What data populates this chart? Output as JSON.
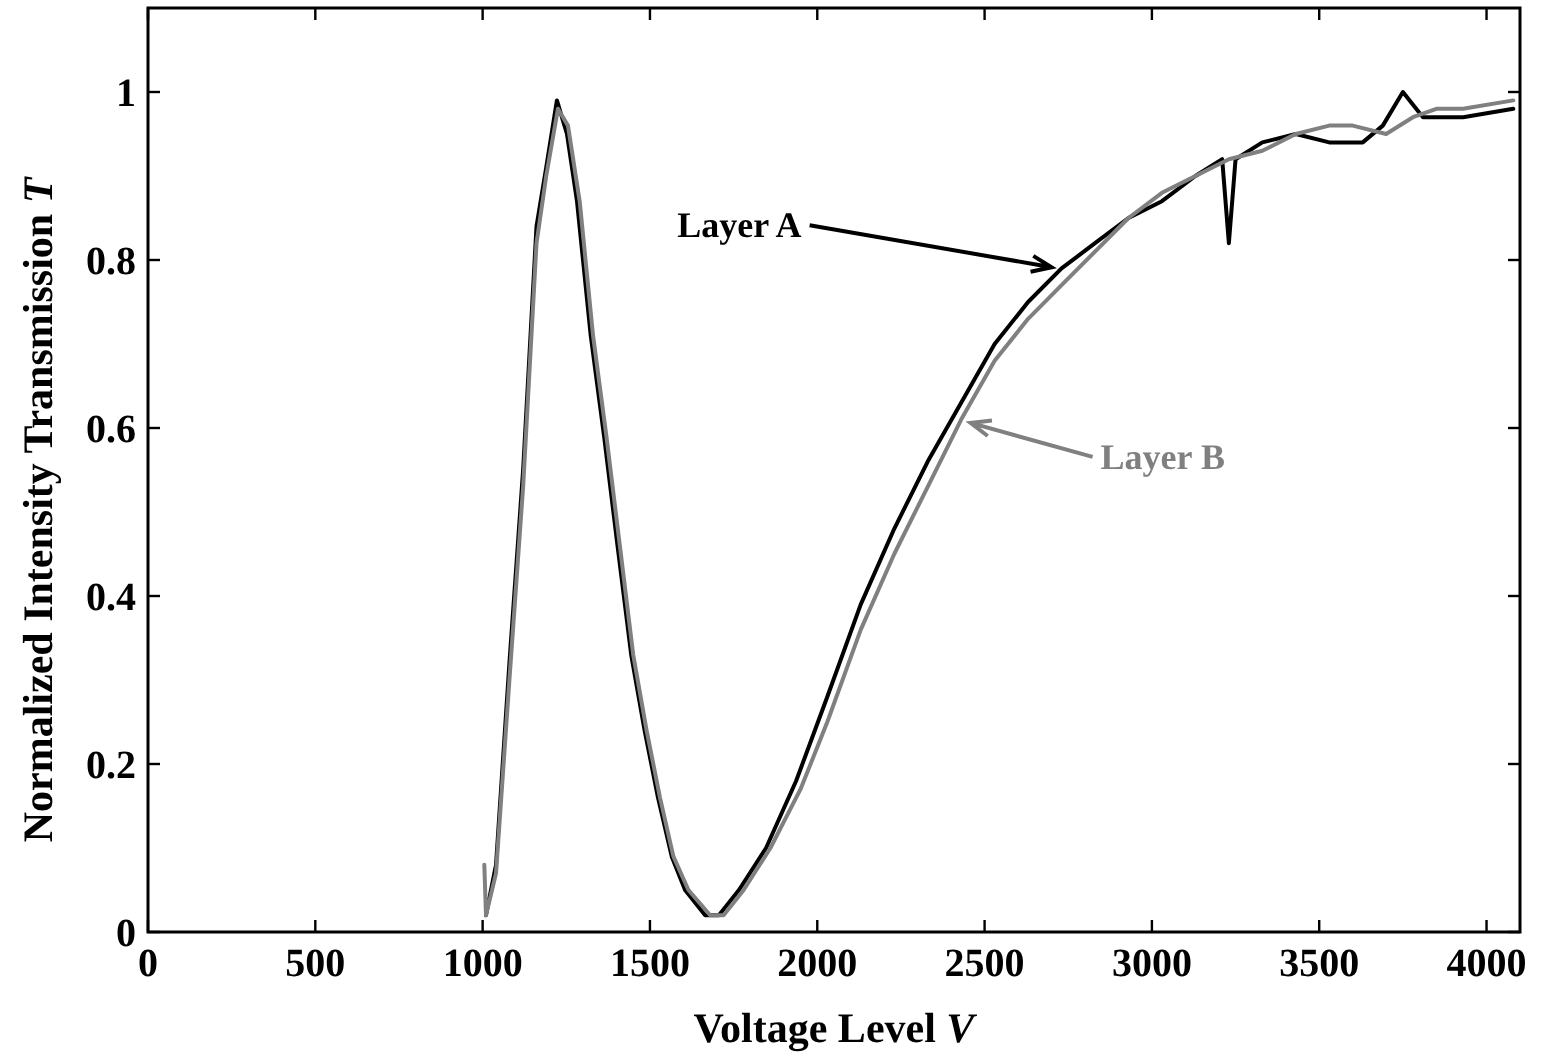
{
  "chart_data": {
    "type": "line",
    "xlabel": "Voltage Level V",
    "ylabel": "Normalized Intensity Transmission T",
    "xlim": [
      0,
      4100
    ],
    "ylim": [
      0,
      1.1
    ],
    "xticks": [
      0,
      500,
      1000,
      1500,
      2000,
      2500,
      3000,
      3500,
      4000
    ],
    "yticks": [
      0,
      0.2,
      0.4,
      0.6,
      0.8,
      1
    ],
    "grid": false,
    "marker": "none",
    "line_style": "solid",
    "series": [
      {
        "name": "Layer A",
        "color": "#000000",
        "x": [
          1010,
          1040,
          1080,
          1121,
          1161,
          1190,
          1222,
          1252,
          1282,
          1323,
          1363,
          1403,
          1444,
          1484,
          1524,
          1565,
          1605,
          1665,
          1706,
          1766,
          1847,
          1937,
          2030,
          2130,
          2230,
          2330,
          2430,
          2530,
          2630,
          2730,
          2830,
          2930,
          3030,
          3130,
          3210,
          3230,
          3250,
          3330,
          3430,
          3530,
          3630,
          3690,
          3750,
          3810,
          3930,
          4080
        ],
        "values": [
          0.02,
          0.08,
          0.32,
          0.55,
          0.84,
          0.91,
          0.99,
          0.95,
          0.87,
          0.71,
          0.59,
          0.46,
          0.33,
          0.24,
          0.16,
          0.09,
          0.05,
          0.02,
          0.02,
          0.05,
          0.1,
          0.18,
          0.28,
          0.39,
          0.48,
          0.56,
          0.63,
          0.7,
          0.75,
          0.79,
          0.82,
          0.85,
          0.87,
          0.9,
          0.92,
          0.82,
          0.92,
          0.94,
          0.95,
          0.94,
          0.94,
          0.96,
          1,
          0.97,
          0.97,
          0.98
        ]
      },
      {
        "name": "Layer B",
        "color": "#808080",
        "x": [
          1005,
          1010,
          1040,
          1080,
          1121,
          1161,
          1190,
          1225,
          1255,
          1290,
          1330,
          1370,
          1410,
          1450,
          1490,
          1530,
          1570,
          1615,
          1680,
          1720,
          1780,
          1860,
          1950,
          2030,
          2130,
          2230,
          2330,
          2430,
          2530,
          2630,
          2730,
          2830,
          2930,
          3030,
          3130,
          3230,
          3330,
          3430,
          3530,
          3600,
          3700,
          3780,
          3850,
          3930,
          4080
        ],
        "values": [
          0.08,
          0.02,
          0.07,
          0.3,
          0.53,
          0.82,
          0.9,
          0.98,
          0.96,
          0.87,
          0.71,
          0.59,
          0.46,
          0.33,
          0.24,
          0.16,
          0.09,
          0.05,
          0.02,
          0.02,
          0.05,
          0.1,
          0.17,
          0.25,
          0.36,
          0.45,
          0.53,
          0.61,
          0.68,
          0.73,
          0.77,
          0.81,
          0.85,
          0.88,
          0.9,
          0.92,
          0.93,
          0.95,
          0.96,
          0.96,
          0.95,
          0.97,
          0.98,
          0.98,
          0.99
        ]
      }
    ]
  }
}
